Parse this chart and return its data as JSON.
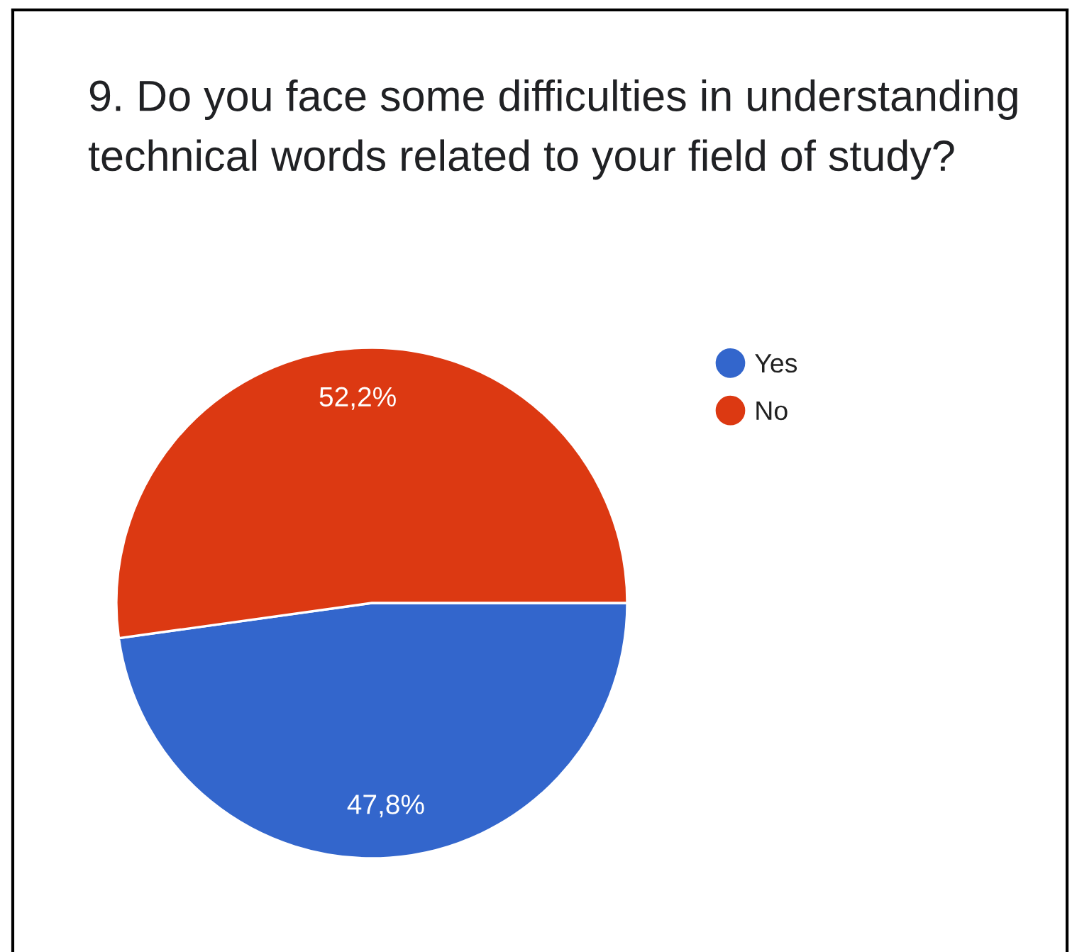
{
  "chart_data": {
    "type": "pie",
    "title": "9. Do you face some difficulties in understanding technical words related to your field of study?",
    "categories": [
      "Yes",
      "No"
    ],
    "values": [
      47.8,
      52.2
    ],
    "colors": [
      "#3366cc",
      "#dc3912"
    ],
    "value_labels": [
      "47,8%",
      "52,2%"
    ],
    "legend": "top right"
  }
}
